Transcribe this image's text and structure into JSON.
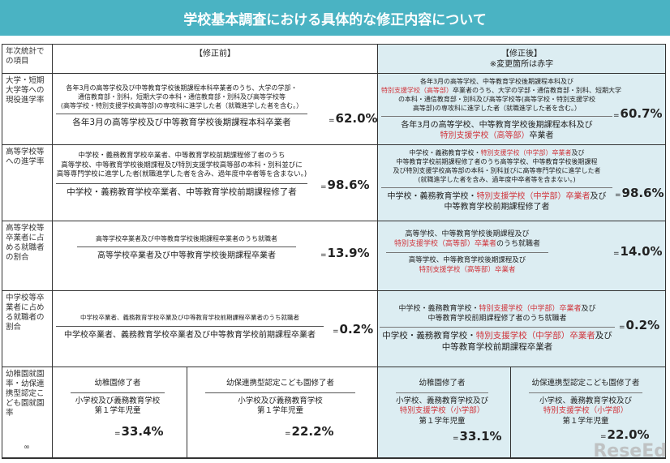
{
  "title": "学校基本調査における具体的な修正内容について",
  "header": {
    "item": "年次統計での項目",
    "before": "【修正前】",
    "after": "【修正後】",
    "after_note": "※変更箇所は赤字"
  },
  "colors": {
    "title_bar": "#4ab3c3",
    "after_bg": "#dcedf2",
    "changed_text": "#d0343b"
  },
  "rows": [
    {
      "label": "大学・短期大学等への現役進学率",
      "before": {
        "num": [
          [
            {
              "t": "各年3月の高等学校及び中等教育学校後期課程本科卒業者のうち、大学の学部・"
            }
          ],
          [
            {
              "t": "通信教育部・別科，短期大学の本科・通信教育部・別科及び高等学校等"
            }
          ],
          [
            {
              "t": "(高等学校・特別支援学校高等部)の専攻科に進学した者（就職進学した者を含む。）"
            }
          ]
        ],
        "den": [
          [
            {
              "t": "各年3月の高等学校及び中等教育学校後期課程本科卒業者"
            }
          ]
        ],
        "value": "62.0%"
      },
      "after": {
        "num": [
          [
            {
              "t": "各年3月の高等学校、中等教育学校後期課程本科及び"
            }
          ],
          [
            {
              "t": "特別支援学校（高等部）",
              "r": true
            },
            {
              "t": "卒業者のうち、大学の学部・通信教育部・別科、短期大学"
            }
          ],
          [
            {
              "t": "の本科・通信教育部・別科及び高等学校等(高等学校・特別支援学校"
            }
          ],
          [
            {
              "t": "高等部)の専攻科に進学した者（就職進学した者を含む。）"
            }
          ]
        ],
        "den": [
          [
            {
              "t": "各年3月の高等学校、中等教育学校後期課程本科及び"
            }
          ],
          [
            {
              "t": "特別支援学校（高等部）",
              "r": true
            },
            {
              "t": "卒業者"
            }
          ]
        ],
        "value": "60.7%"
      }
    },
    {
      "label": "高等学校等への進学率",
      "before": {
        "num": [
          [
            {
              "t": "中学校・義務教育学校卒業者、中等教育学校前期課程修了者のうち"
            }
          ],
          [
            {
              "t": "高等学校、中等教育学校後期課程及び特別支援学校高等部の本科・別科並びに"
            }
          ],
          [
            {
              "t": "高等専門学校に進学した者(就職進学した者を含み、過年度中卒者等を含まない。)"
            }
          ]
        ],
        "den": [
          [
            {
              "t": "中学校・義務教育学校卒業者、中等教育学校前期課程修了者"
            }
          ]
        ],
        "value": "98.6%"
      },
      "after": {
        "num": [
          [
            {
              "t": "中学校・義務教育学校・"
            },
            {
              "t": "特別支援学校（中学部）卒業者",
              "r": true
            },
            {
              "t": "及び"
            }
          ],
          [
            {
              "t": "中等教育学校前期課程修了者のうち高等学校、中等教育学校後期課程"
            }
          ],
          [
            {
              "t": "及び特別支援学校高等部の本科・別科並びに高等専門学校に進学した者"
            }
          ],
          [
            {
              "t": "(就職進学した者を含み、過年度中卒者等を含まない。)"
            }
          ]
        ],
        "den": [
          [
            {
              "t": "中学校・義務教育学校・"
            },
            {
              "t": "特別支援学校（中学部）卒業者",
              "r": true
            },
            {
              "t": "及び"
            }
          ],
          [
            {
              "t": "中等教育学校前期課程修了者"
            }
          ]
        ],
        "value": "98.6%"
      }
    },
    {
      "label": "高等学校等卒業者に占める就職者の割合",
      "before": {
        "num": [
          [
            {
              "t": "高等学校卒業者及び中等教育学校後期課程卒業者のうち就職者"
            }
          ]
        ],
        "den": [
          [
            {
              "t": "高等学校卒業者及び中等教育学校後期課程卒業者"
            }
          ]
        ],
        "value": "13.9%"
      },
      "after": {
        "num": [
          [
            {
              "t": "高等学校、中等教育学校後期課程及び"
            }
          ],
          [
            {
              "t": "特別支援学校（高等部）卒業者",
              "r": true
            },
            {
              "t": "のうち就職者"
            }
          ]
        ],
        "den": [
          [
            {
              "t": "高等学校、中等教育学校後期課程及び"
            }
          ],
          [
            {
              "t": "特別支援学校（高等部）卒業者",
              "r": true
            }
          ]
        ],
        "value": "14.0%"
      }
    },
    {
      "label": "中学校等卒業者に占める就職者の割合",
      "before": {
        "num": [
          [
            {
              "t": "中学校卒業者、義務教育学校卒業及び中等教育学校前期課程卒業者のうち就職者"
            }
          ]
        ],
        "den": [
          [
            {
              "t": "中学校卒業者、義務教育学校卒業者及び中等教育学校前期課程卒業者"
            }
          ]
        ],
        "value": "0.2%"
      },
      "after": {
        "num": [
          [
            {
              "t": "中学校・義務教育学校・"
            },
            {
              "t": "特別支援学校（中学部）卒業者",
              "r": true
            },
            {
              "t": "及び"
            }
          ],
          [
            {
              "t": "中等教育学校前期課程修了者のうち就職者"
            }
          ]
        ],
        "den": [
          [
            {
              "t": "中学校・義務教育学校・"
            },
            {
              "t": "特別支援学校（中学部）卒業者",
              "r": true
            },
            {
              "t": "及び"
            }
          ],
          [
            {
              "t": "中等教育学校前期課程卒業者"
            }
          ]
        ],
        "value": "0.2%"
      }
    }
  ],
  "row5": {
    "label": "幼稚園就園率・幼保連携型認定こども園就園率",
    "footnote": "∞",
    "before": [
      {
        "num": [
          [
            {
              "t": "幼稚園修了者"
            }
          ]
        ],
        "den": [
          [
            {
              "t": "小学校及び義務教育学校"
            }
          ],
          [
            {
              "t": "第１学年児童"
            }
          ]
        ],
        "value": "33.4%"
      },
      {
        "num": [
          [
            {
              "t": "幼保連携型認定こども園修了者"
            }
          ]
        ],
        "den": [
          [
            {
              "t": "小学校及び義務教育学校"
            }
          ],
          [
            {
              "t": "第１学年児童"
            }
          ]
        ],
        "value": "22.2%"
      }
    ],
    "after": [
      {
        "num": [
          [
            {
              "t": "幼稚園修了者"
            }
          ]
        ],
        "den": [
          [
            {
              "t": "小学校、義務教育学校及び"
            }
          ],
          [
            {
              "t": "特別支援学校（小学部）",
              "r": true
            }
          ],
          [
            {
              "t": "第１学年児童"
            }
          ]
        ],
        "value": "33.1%"
      },
      {
        "num": [
          [
            {
              "t": "幼保連携型認定こども園修了者"
            }
          ]
        ],
        "den": [
          [
            {
              "t": "小学校、義務教育学校及び"
            }
          ],
          [
            {
              "t": "特別支援学校（小学部）",
              "r": true
            }
          ],
          [
            {
              "t": "第１学年児童"
            }
          ]
        ],
        "value": "22.0%"
      }
    ]
  },
  "watermark": "ReseEd"
}
